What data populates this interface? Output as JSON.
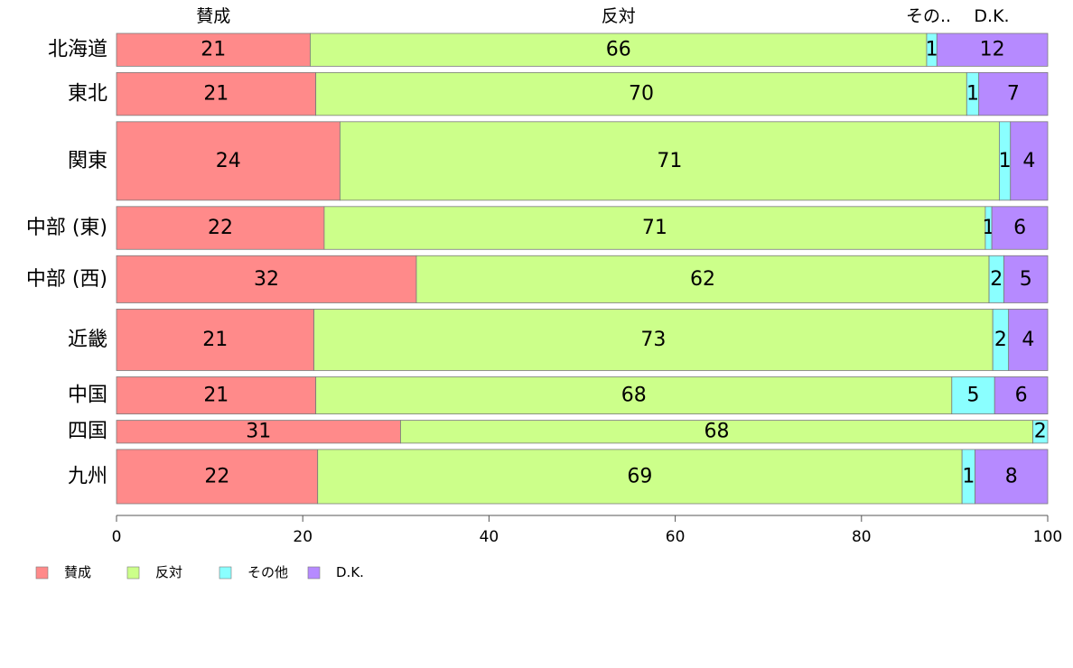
{
  "chart_data": {
    "type": "bar",
    "orientation": "horizontal",
    "stacked": true,
    "percent": true,
    "categories": [
      "北海道",
      "東北",
      "関東",
      "中部 (東)",
      "中部 (西)",
      "近畿",
      "中国",
      "四国",
      "九州"
    ],
    "series": [
      {
        "name": "賛成",
        "color": "#ff8a8a",
        "values": [
          21,
          21,
          24,
          22,
          32,
          21,
          21,
          31,
          22
        ],
        "fractions": [
          20.8,
          21.4,
          24.0,
          22.3,
          32.2,
          21.2,
          21.4,
          30.5,
          21.6
        ]
      },
      {
        "name": "反対",
        "color": "#ccff8a",
        "values": [
          66,
          70,
          71,
          71,
          62,
          73,
          68,
          68,
          69
        ],
        "fractions": [
          66.2,
          69.9,
          70.8,
          71.0,
          61.5,
          72.9,
          68.3,
          67.9,
          69.2
        ]
      },
      {
        "name": "その他",
        "color": "#8affff",
        "values": [
          1,
          1,
          1,
          1,
          2,
          2,
          5,
          2,
          1
        ],
        "fractions": [
          1.1,
          1.3,
          1.2,
          0.7,
          1.6,
          1.7,
          4.6,
          1.6,
          1.4
        ]
      },
      {
        "name": "D.K.",
        "color": "#b68aff",
        "values": [
          12,
          7,
          4,
          6,
          5,
          4,
          6,
          null,
          8
        ],
        "fractions": [
          11.9,
          7.4,
          4.0,
          6.0,
          4.7,
          4.2,
          5.7,
          0.0,
          7.8
        ]
      }
    ],
    "top_labels": [
      "賛成",
      "反対",
      "その..",
      "D.K."
    ],
    "xlim": [
      0,
      100
    ],
    "xticks": [
      0,
      20,
      40,
      60,
      80,
      100
    ],
    "row_weights": [
      2.3,
      3.0,
      5.5,
      3.0,
      3.3,
      4.3,
      2.6,
      1.6,
      3.8
    ],
    "legend": {
      "position": "bottom-left",
      "entries": [
        "賛成",
        "反対",
        "その他",
        "D.K."
      ]
    },
    "grid": false,
    "title": "",
    "xlabel": "",
    "ylabel": ""
  }
}
